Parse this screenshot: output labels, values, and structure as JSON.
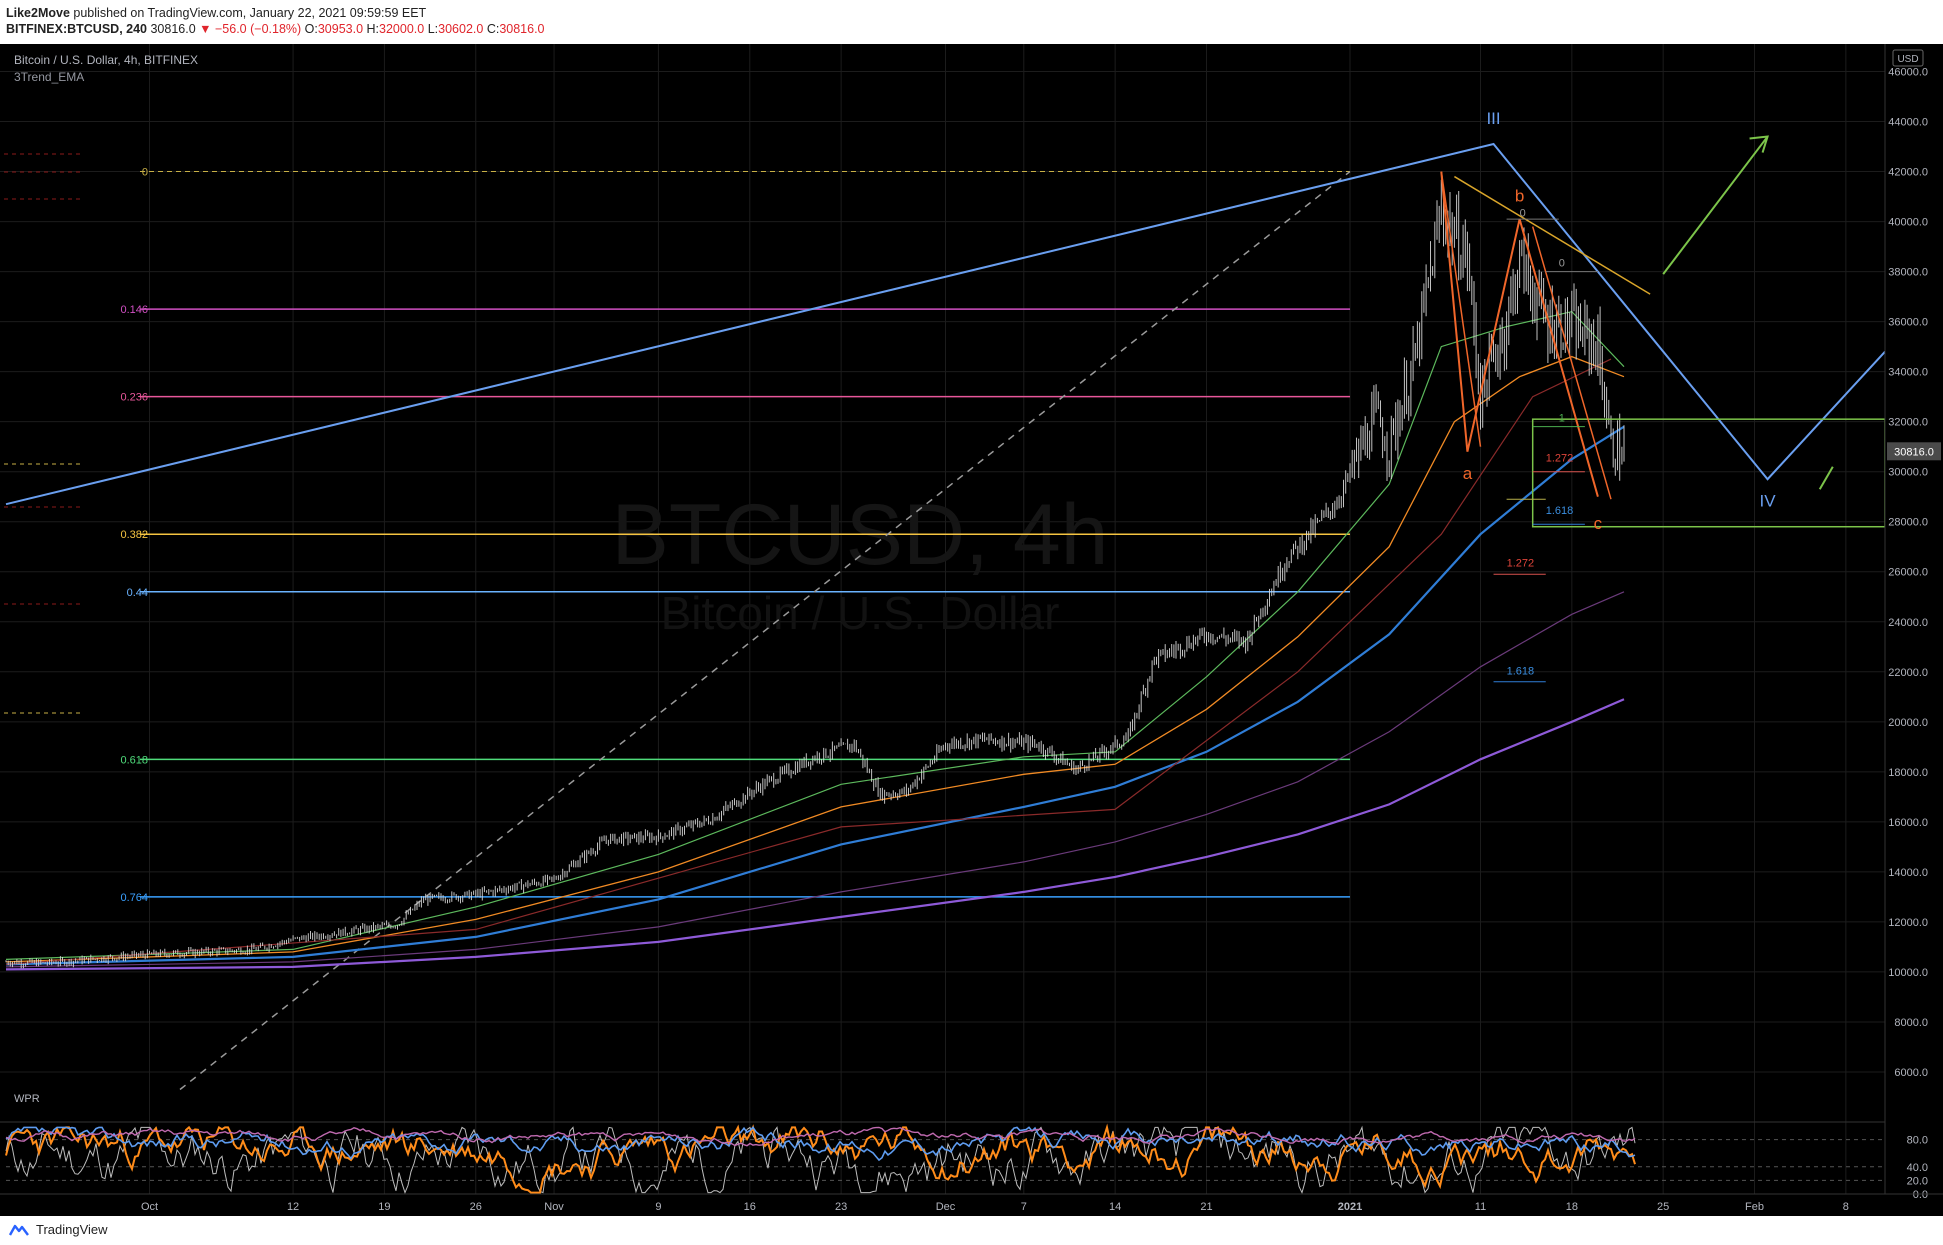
{
  "header": {
    "author": "Like2Move",
    "published_text": "published on TradingView.com, January 22, 2021 09:59:59 EET",
    "symbol": "BITFINEX:BTCUSD, 240",
    "last": "30816.0",
    "change": "▼ −56.0 (−0.18%)",
    "o_label": "O:",
    "o_value": "30953.0",
    "h_label": "H:",
    "h_value": "32000.0",
    "l_label": "L:",
    "l_value": "30602.0",
    "c_label": "C:",
    "c_value": "30816.0"
  },
  "chart": {
    "legend_title": "Bitcoin / U.S. Dollar, 4h, BITFINEX",
    "indicator_label": "3Trend_EMA",
    "watermark_main": "BTCUSD, 4h",
    "watermark_sub": "Bitcoin / U.S. Dollar",
    "currency": "USD",
    "last_price_label": "30816.0",
    "osc_label": "WPR"
  },
  "footer": {
    "brand": "TradingView"
  },
  "colors": {
    "background": "#000000",
    "grid": "#1c1c1c",
    "axis_text": "#b2b5be",
    "candles": "#d7d7d7",
    "trend_blue": "#6a9ff0",
    "ema_fast_green": "#5cb85c",
    "ema_orange": "#f08a24",
    "ema_red": "#8a2a2a",
    "ema_blue": "#2f7dd6",
    "ema_purple_dark": "#6a3a7a",
    "ema_violet": "#8e5ad8",
    "wave_orange": "#f0662a",
    "box_green": "#7cc44a",
    "wpr_orange": "#ff8c1a",
    "wpr_blue": "#5e9cf0",
    "wpr_pink": "#c06ab0",
    "wpr_gray": "#bdbdbd"
  },
  "chart_data": {
    "type": "line",
    "title": "Bitcoin / U.S. Dollar, 4h, BITFINEX",
    "x_tick_labels": [
      "Oct",
      "12",
      "19",
      "26",
      "Nov",
      "9",
      "16",
      "23",
      "Dec",
      "7",
      "14",
      "21",
      "2021",
      "11",
      "18",
      "25",
      "Feb",
      "8"
    ],
    "y_tick_labels": [
      "46000.0",
      "44000.0",
      "42000.0",
      "40000.0",
      "38000.0",
      "36000.0",
      "34000.0",
      "32000.0",
      "30000.0",
      "28000.0",
      "26000.0",
      "24000.0",
      "22000.0",
      "20000.0",
      "18000.0",
      "16000.0",
      "14000.0",
      "12000.0",
      "10000.0",
      "8000.0",
      "6000.0"
    ],
    "ylim": [
      4200,
      47100
    ],
    "xlim": [
      "2020-09-20",
      "2021-02-11"
    ],
    "price_path": [
      {
        "x": "2020-09-20",
        "y": 10400
      },
      {
        "x": "2020-09-23",
        "y": 10350
      },
      {
        "x": "2020-10-01",
        "y": 10700
      },
      {
        "x": "2020-10-09",
        "y": 10900
      },
      {
        "x": "2020-10-12",
        "y": 11300
      },
      {
        "x": "2020-10-20",
        "y": 11900
      },
      {
        "x": "2020-10-22",
        "y": 12900
      },
      {
        "x": "2020-10-26",
        "y": 13100
      },
      {
        "x": "2020-11-01",
        "y": 13700
      },
      {
        "x": "2020-11-05",
        "y": 15300
      },
      {
        "x": "2020-11-09",
        "y": 15400
      },
      {
        "x": "2020-11-13",
        "y": 16100
      },
      {
        "x": "2020-11-17",
        "y": 17500
      },
      {
        "x": "2020-11-21",
        "y": 18600
      },
      {
        "x": "2020-11-24",
        "y": 19100
      },
      {
        "x": "2020-11-26",
        "y": 17100
      },
      {
        "x": "2020-11-28",
        "y": 17200
      },
      {
        "x": "2020-12-01",
        "y": 19100
      },
      {
        "x": "2020-12-04",
        "y": 19300
      },
      {
        "x": "2020-12-08",
        "y": 19100
      },
      {
        "x": "2020-12-11",
        "y": 18100
      },
      {
        "x": "2020-12-15",
        "y": 19400
      },
      {
        "x": "2020-12-17",
        "y": 22500
      },
      {
        "x": "2020-12-21",
        "y": 23500
      },
      {
        "x": "2020-12-24",
        "y": 23200
      },
      {
        "x": "2020-12-27",
        "y": 26400
      },
      {
        "x": "2020-12-31",
        "y": 28800
      },
      {
        "x": "2021-01-03",
        "y": 32200
      },
      {
        "x": "2021-01-04",
        "y": 31000
      },
      {
        "x": "2021-01-06",
        "y": 34500
      },
      {
        "x": "2021-01-08",
        "y": 40500
      },
      {
        "x": "2021-01-10",
        "y": 38500
      },
      {
        "x": "2021-01-11",
        "y": 33000
      },
      {
        "x": "2021-01-13",
        "y": 36000
      },
      {
        "x": "2021-01-14",
        "y": 38500
      },
      {
        "x": "2021-01-16",
        "y": 36000
      },
      {
        "x": "2021-01-18",
        "y": 35800
      },
      {
        "x": "2021-01-20",
        "y": 35000
      },
      {
        "x": "2021-01-21",
        "y": 31000
      },
      {
        "x": "2021-01-22",
        "y": 30816
      }
    ],
    "ema_lines": [
      {
        "points": [
          {
            "x": "2020-09-20",
            "y": 10500
          },
          {
            "x": "2020-10-12",
            "y": 10900
          },
          {
            "x": "2020-10-26",
            "y": 12600
          },
          {
            "x": "2020-11-09",
            "y": 14700
          },
          {
            "x": "2020-11-23",
            "y": 17500
          },
          {
            "x": "2020-12-07",
            "y": 18600
          },
          {
            "x": "2020-12-14",
            "y": 18800
          },
          {
            "x": "2020-12-21",
            "y": 21800
          },
          {
            "x": "2020-12-28",
            "y": 25200
          },
          {
            "x": "2021-01-04",
            "y": 29500
          },
          {
            "x": "2021-01-08",
            "y": 35000
          },
          {
            "x": "2021-01-13",
            "y": 35800
          },
          {
            "x": "2021-01-18",
            "y": 36400
          },
          {
            "x": "2021-01-22",
            "y": 34200
          }
        ]
      },
      {
        "points": [
          {
            "x": "2020-09-20",
            "y": 10400
          },
          {
            "x": "2020-10-12",
            "y": 10800
          },
          {
            "x": "2020-10-26",
            "y": 12100
          },
          {
            "x": "2020-11-09",
            "y": 14000
          },
          {
            "x": "2020-11-23",
            "y": 16600
          },
          {
            "x": "2020-12-07",
            "y": 17900
          },
          {
            "x": "2020-12-14",
            "y": 18300
          },
          {
            "x": "2020-12-21",
            "y": 20500
          },
          {
            "x": "2020-12-28",
            "y": 23400
          },
          {
            "x": "2021-01-04",
            "y": 27000
          },
          {
            "x": "2021-01-09",
            "y": 32000
          },
          {
            "x": "2021-01-14",
            "y": 33800
          },
          {
            "x": "2021-01-18",
            "y": 34600
          },
          {
            "x": "2021-01-22",
            "y": 33800
          }
        ]
      },
      {
        "points": [
          {
            "x": "2020-09-20",
            "y": 10300
          },
          {
            "x": "2020-10-12",
            "y": 10600
          },
          {
            "x": "2020-10-26",
            "y": 11400
          },
          {
            "x": "2020-11-09",
            "y": 12900
          },
          {
            "x": "2020-11-23",
            "y": 15100
          },
          {
            "x": "2020-12-07",
            "y": 16600
          },
          {
            "x": "2020-12-14",
            "y": 17400
          },
          {
            "x": "2020-12-21",
            "y": 18800
          },
          {
            "x": "2020-12-28",
            "y": 20800
          },
          {
            "x": "2021-01-04",
            "y": 23500
          },
          {
            "x": "2021-01-11",
            "y": 27500
          },
          {
            "x": "2021-01-18",
            "y": 30500
          },
          {
            "x": "2021-01-22",
            "y": 31800
          }
        ]
      },
      {
        "points": [
          {
            "x": "2020-09-20",
            "y": 10200
          },
          {
            "x": "2020-10-12",
            "y": 10400
          },
          {
            "x": "2020-10-26",
            "y": 10900
          },
          {
            "x": "2020-11-09",
            "y": 11800
          },
          {
            "x": "2020-11-23",
            "y": 13200
          },
          {
            "x": "2020-12-07",
            "y": 14400
          },
          {
            "x": "2020-12-14",
            "y": 15200
          },
          {
            "x": "2020-12-21",
            "y": 16300
          },
          {
            "x": "2020-12-28",
            "y": 17600
          },
          {
            "x": "2021-01-04",
            "y": 19600
          },
          {
            "x": "2021-01-11",
            "y": 22200
          },
          {
            "x": "2021-01-18",
            "y": 24300
          },
          {
            "x": "2021-01-22",
            "y": 25200
          }
        ]
      },
      {
        "points": [
          {
            "x": "2020-09-20",
            "y": 10100
          },
          {
            "x": "2020-10-12",
            "y": 10200
          },
          {
            "x": "2020-10-26",
            "y": 10600
          },
          {
            "x": "2020-11-09",
            "y": 11200
          },
          {
            "x": "2020-11-23",
            "y": 12200
          },
          {
            "x": "2020-12-07",
            "y": 13200
          },
          {
            "x": "2020-12-14",
            "y": 13800
          },
          {
            "x": "2020-12-21",
            "y": 14600
          },
          {
            "x": "2020-12-28",
            "y": 15500
          },
          {
            "x": "2021-01-04",
            "y": 16700
          },
          {
            "x": "2021-01-11",
            "y": 18500
          },
          {
            "x": "2021-01-18",
            "y": 20000
          },
          {
            "x": "2021-01-22",
            "y": 20900
          }
        ]
      }
    ],
    "fib_levels": [
      {
        "label": "0",
        "value": 42000
      },
      {
        "label": "0.146",
        "value": 36500
      },
      {
        "label": "0.236",
        "value": 33000
      },
      {
        "label": "0.382",
        "value": 27500
      },
      {
        "label": "0.44",
        "value": 25200
      },
      {
        "label": "0.618",
        "value": 18500
      },
      {
        "label": "0.764",
        "value": 13000
      }
    ],
    "fib_small_labels": [
      {
        "label": "0",
        "x": "2021-01-14",
        "y": 40200
      },
      {
        "label": "0",
        "x": "2021-01-17",
        "y": 38200
      },
      {
        "label": "1",
        "x": "2021-01-17",
        "y": 32000
      },
      {
        "label": "1.272",
        "x": "2021-01-16",
        "y": 30400
      },
      {
        "label": "1.618",
        "x": "2021-01-16",
        "y": 28300
      },
      {
        "label": "1.272",
        "x": "2021-01-13",
        "y": 26200
      },
      {
        "label": "1.618",
        "x": "2021-01-13",
        "y": 21900
      }
    ],
    "wave_labels": [
      {
        "label": "III",
        "x": "2021-01-12",
        "y": 43900
      },
      {
        "label": "IV",
        "x": "2021-02-02",
        "y": 28600
      },
      {
        "label": "a",
        "x": "2021-01-10",
        "y": 29700
      },
      {
        "label": "b",
        "x": "2021-01-14",
        "y": 40800
      },
      {
        "label": "c",
        "x": "2021-01-20",
        "y": 27700
      }
    ],
    "wpr_ticks": [
      "80.0",
      "40.0",
      "20.0",
      "0.0"
    ]
  }
}
